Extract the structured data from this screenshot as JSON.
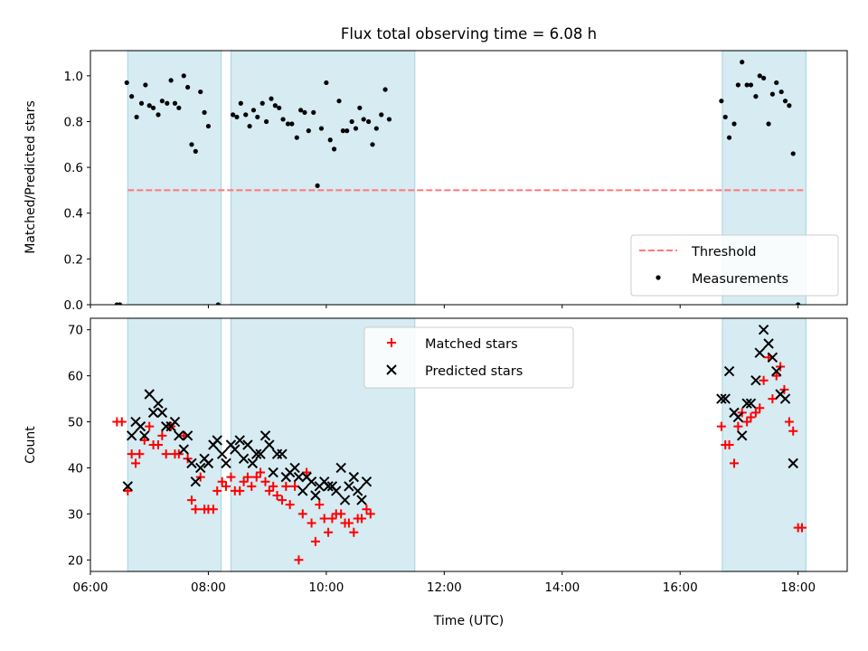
{
  "colors": {
    "observing_band": "#add8e6",
    "threshold": "#ff7777",
    "matched": "#ff0000",
    "predicted": "#000000",
    "measurement": "#000000"
  },
  "chart_data": [
    {
      "type": "scatter",
      "title": "Flux total observing time = 6.08 h",
      "xlabel": "",
      "ylabel": "Matched/Predicted stars",
      "xlim": [
        "06:00",
        "18:50"
      ],
      "ylim": [
        0,
        1.11
      ],
      "yticks": [
        "0.0",
        "0.2",
        "0.4",
        "0.6",
        "0.8",
        "1.0"
      ],
      "grid": false,
      "legend_position": "lower right",
      "observing_periods": [
        [
          "06:38",
          "08:13"
        ],
        [
          "08:23",
          "11:30"
        ],
        [
          "16:43",
          "18:08"
        ]
      ],
      "threshold": {
        "name": "Threshold",
        "y": 0.5,
        "x_range": [
          "06:38",
          "18:08"
        ],
        "style": "dashed"
      },
      "series": [
        {
          "name": "Measurements",
          "marker": "dot",
          "points": [
            [
              "06:27",
              0.0
            ],
            [
              "06:30",
              0.0
            ],
            [
              "06:37",
              0.97
            ],
            [
              "06:42",
              0.91
            ],
            [
              "06:47",
              0.82
            ],
            [
              "06:52",
              0.88
            ],
            [
              "06:56",
              0.96
            ],
            [
              "07:00",
              0.87
            ],
            [
              "07:04",
              0.86
            ],
            [
              "07:09",
              0.83
            ],
            [
              "07:13",
              0.89
            ],
            [
              "07:18",
              0.88
            ],
            [
              "07:22",
              0.98
            ],
            [
              "07:26",
              0.88
            ],
            [
              "07:30",
              0.86
            ],
            [
              "07:35",
              1.0
            ],
            [
              "07:39",
              0.95
            ],
            [
              "07:43",
              0.7
            ],
            [
              "07:47",
              0.67
            ],
            [
              "07:52",
              0.93
            ],
            [
              "07:56",
              0.84
            ],
            [
              "08:00",
              0.78
            ],
            [
              "08:10",
              0.0
            ],
            [
              "08:25",
              0.83
            ],
            [
              "08:29",
              0.82
            ],
            [
              "08:33",
              0.88
            ],
            [
              "08:38",
              0.83
            ],
            [
              "08:42",
              0.78
            ],
            [
              "08:46",
              0.85
            ],
            [
              "08:50",
              0.82
            ],
            [
              "08:55",
              0.88
            ],
            [
              "08:59",
              0.8
            ],
            [
              "09:04",
              0.9
            ],
            [
              "09:08",
              0.87
            ],
            [
              "09:12",
              0.86
            ],
            [
              "09:16",
              0.81
            ],
            [
              "09:21",
              0.79
            ],
            [
              "09:25",
              0.79
            ],
            [
              "09:30",
              0.73
            ],
            [
              "09:34",
              0.85
            ],
            [
              "09:38",
              0.84
            ],
            [
              "09:42",
              0.76
            ],
            [
              "09:47",
              0.84
            ],
            [
              "09:51",
              0.52
            ],
            [
              "09:55",
              0.77
            ],
            [
              "10:00",
              0.97
            ],
            [
              "10:04",
              0.72
            ],
            [
              "10:08",
              0.68
            ],
            [
              "10:13",
              0.89
            ],
            [
              "10:17",
              0.76
            ],
            [
              "10:21",
              0.76
            ],
            [
              "10:26",
              0.8
            ],
            [
              "10:30",
              0.77
            ],
            [
              "10:34",
              0.86
            ],
            [
              "10:38",
              0.81
            ],
            [
              "10:43",
              0.8
            ],
            [
              "10:47",
              0.7
            ],
            [
              "10:51",
              0.77
            ],
            [
              "10:56",
              0.83
            ],
            [
              "11:00",
              0.94
            ],
            [
              "11:04",
              0.81
            ],
            [
              "16:42",
              0.89
            ],
            [
              "16:46",
              0.82
            ],
            [
              "16:50",
              0.73
            ],
            [
              "16:55",
              0.79
            ],
            [
              "16:59",
              0.96
            ],
            [
              "17:03",
              1.06
            ],
            [
              "17:08",
              0.96
            ],
            [
              "17:12",
              0.96
            ],
            [
              "17:17",
              0.91
            ],
            [
              "17:21",
              1.0
            ],
            [
              "17:25",
              0.99
            ],
            [
              "17:30",
              0.79
            ],
            [
              "17:34",
              0.92
            ],
            [
              "17:38",
              0.97
            ],
            [
              "17:43",
              0.93
            ],
            [
              "17:47",
              0.89
            ],
            [
              "17:51",
              0.87
            ],
            [
              "17:55",
              0.66
            ],
            [
              "18:00",
              0.0
            ]
          ]
        }
      ],
      "legend": [
        "Threshold",
        "Measurements"
      ]
    },
    {
      "type": "scatter",
      "title": "",
      "xlabel": "Time (UTC)",
      "ylabel": "Count",
      "xlim": [
        "06:00",
        "18:50"
      ],
      "ylim": [
        17.5,
        72.5
      ],
      "xticks": [
        "06:00",
        "08:00",
        "10:00",
        "12:00",
        "14:00",
        "16:00",
        "18:00"
      ],
      "yticks": [
        "20",
        "30",
        "40",
        "50",
        "60",
        "70"
      ],
      "grid": false,
      "legend_position": "upper center",
      "observing_periods": [
        [
          "06:38",
          "08:13"
        ],
        [
          "08:23",
          "11:30"
        ],
        [
          "16:43",
          "18:08"
        ]
      ],
      "series": [
        {
          "name": "Matched stars",
          "marker": "plus",
          "points": [
            [
              "06:27",
              50
            ],
            [
              "06:32",
              50
            ],
            [
              "06:38",
              35
            ],
            [
              "06:42",
              43
            ],
            [
              "06:46",
              41
            ],
            [
              "06:50",
              43
            ],
            [
              "06:55",
              46
            ],
            [
              "07:00",
              49
            ],
            [
              "07:04",
              45
            ],
            [
              "07:09",
              45
            ],
            [
              "07:13",
              47
            ],
            [
              "07:17",
              43
            ],
            [
              "07:22",
              49
            ],
            [
              "07:26",
              43
            ],
            [
              "07:30",
              43
            ],
            [
              "07:35",
              47
            ],
            [
              "07:39",
              42
            ],
            [
              "07:43",
              33
            ],
            [
              "07:47",
              31
            ],
            [
              "07:52",
              38
            ],
            [
              "07:56",
              31
            ],
            [
              "08:00",
              31
            ],
            [
              "08:05",
              31
            ],
            [
              "08:09",
              35
            ],
            [
              "08:14",
              37
            ],
            [
              "08:18",
              36
            ],
            [
              "08:23",
              38
            ],
            [
              "08:27",
              35
            ],
            [
              "08:32",
              35
            ],
            [
              "08:36",
              37
            ],
            [
              "08:40",
              38
            ],
            [
              "08:44",
              36
            ],
            [
              "08:49",
              38
            ],
            [
              "08:53",
              39
            ],
            [
              "08:58",
              37
            ],
            [
              "09:02",
              35
            ],
            [
              "09:06",
              36
            ],
            [
              "09:10",
              34
            ],
            [
              "09:15",
              33
            ],
            [
              "09:19",
              36
            ],
            [
              "09:23",
              32
            ],
            [
              "09:28",
              36
            ],
            [
              "09:32",
              20
            ],
            [
              "09:36",
              30
            ],
            [
              "09:40",
              39
            ],
            [
              "09:45",
              28
            ],
            [
              "09:49",
              24
            ],
            [
              "09:53",
              32
            ],
            [
              "09:58",
              29
            ],
            [
              "10:02",
              26
            ],
            [
              "10:06",
              29
            ],
            [
              "10:10",
              30
            ],
            [
              "10:15",
              30
            ],
            [
              "10:19",
              28
            ],
            [
              "10:23",
              28
            ],
            [
              "10:28",
              26
            ],
            [
              "10:32",
              29
            ],
            [
              "10:36",
              29
            ],
            [
              "10:41",
              31
            ],
            [
              "10:45",
              30
            ],
            [
              "16:42",
              49
            ],
            [
              "16:46",
              45
            ],
            [
              "16:50",
              45
            ],
            [
              "16:55",
              41
            ],
            [
              "16:59",
              49
            ],
            [
              "17:03",
              52
            ],
            [
              "17:08",
              50
            ],
            [
              "17:12",
              51
            ],
            [
              "17:17",
              52
            ],
            [
              "17:21",
              53
            ],
            [
              "17:25",
              59
            ],
            [
              "17:30",
              64
            ],
            [
              "17:34",
              55
            ],
            [
              "17:38",
              60
            ],
            [
              "17:42",
              62
            ],
            [
              "17:46",
              57
            ],
            [
              "17:51",
              50
            ],
            [
              "17:55",
              48
            ],
            [
              "18:00",
              27
            ],
            [
              "18:04",
              27
            ]
          ]
        },
        {
          "name": "Predicted stars",
          "marker": "x",
          "points": [
            [
              "06:38",
              36
            ],
            [
              "06:42",
              47
            ],
            [
              "06:46",
              50
            ],
            [
              "06:51",
              49
            ],
            [
              "06:55",
              47
            ],
            [
              "07:00",
              56
            ],
            [
              "07:04",
              52
            ],
            [
              "07:09",
              54
            ],
            [
              "07:13",
              52
            ],
            [
              "07:17",
              49
            ],
            [
              "07:22",
              49
            ],
            [
              "07:26",
              50
            ],
            [
              "07:30",
              47
            ],
            [
              "07:35",
              44
            ],
            [
              "07:39",
              47
            ],
            [
              "07:43",
              41
            ],
            [
              "07:47",
              37
            ],
            [
              "07:52",
              40
            ],
            [
              "07:56",
              42
            ],
            [
              "08:00",
              41
            ],
            [
              "08:05",
              45
            ],
            [
              "08:09",
              46
            ],
            [
              "08:14",
              43
            ],
            [
              "08:18",
              41
            ],
            [
              "08:23",
              45
            ],
            [
              "08:27",
              44
            ],
            [
              "08:32",
              46
            ],
            [
              "08:36",
              42
            ],
            [
              "08:40",
              45
            ],
            [
              "08:45",
              41
            ],
            [
              "08:49",
              43
            ],
            [
              "08:53",
              43
            ],
            [
              "08:58",
              47
            ],
            [
              "09:02",
              45
            ],
            [
              "09:06",
              39
            ],
            [
              "09:10",
              43
            ],
            [
              "09:15",
              43
            ],
            [
              "09:19",
              38
            ],
            [
              "09:23",
              39
            ],
            [
              "09:28",
              40
            ],
            [
              "09:32",
              38
            ],
            [
              "09:36",
              35
            ],
            [
              "09:40",
              38
            ],
            [
              "09:45",
              37
            ],
            [
              "09:49",
              34
            ],
            [
              "09:53",
              36
            ],
            [
              "09:58",
              37
            ],
            [
              "10:02",
              36
            ],
            [
              "10:06",
              36
            ],
            [
              "10:10",
              35
            ],
            [
              "10:15",
              40
            ],
            [
              "10:19",
              33
            ],
            [
              "10:23",
              36
            ],
            [
              "10:28",
              38
            ],
            [
              "10:32",
              35
            ],
            [
              "10:36",
              33
            ],
            [
              "10:41",
              37
            ],
            [
              "16:42",
              55
            ],
            [
              "16:46",
              55
            ],
            [
              "16:50",
              61
            ],
            [
              "16:55",
              52
            ],
            [
              "16:59",
              51
            ],
            [
              "17:03",
              47
            ],
            [
              "17:08",
              54
            ],
            [
              "17:12",
              54
            ],
            [
              "17:17",
              59
            ],
            [
              "17:21",
              65
            ],
            [
              "17:25",
              70
            ],
            [
              "17:30",
              67
            ],
            [
              "17:34",
              64
            ],
            [
              "17:38",
              61
            ],
            [
              "17:42",
              56
            ],
            [
              "17:47",
              55
            ],
            [
              "17:55",
              41
            ]
          ]
        }
      ],
      "legend": [
        "Matched stars",
        "Predicted stars"
      ]
    }
  ]
}
